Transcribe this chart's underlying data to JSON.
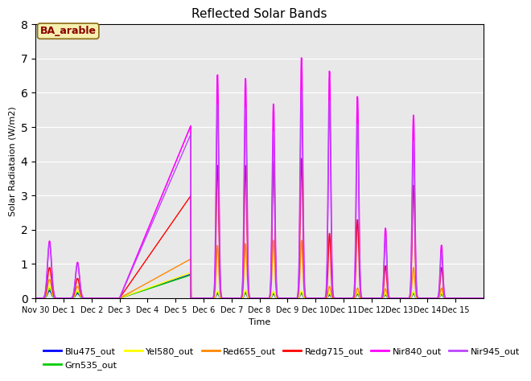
{
  "title": "Reflected Solar Bands",
  "xlabel": "Time",
  "ylabel": "Solar Radiataion (W/m2)",
  "ylim": [
    0,
    8.0
  ],
  "yticks": [
    0.0,
    1.0,
    2.0,
    3.0,
    4.0,
    5.0,
    6.0,
    7.0,
    8.0
  ],
  "xtick_labels": [
    "Nov 30",
    "Dec 1",
    "Dec 2",
    "Dec 3",
    "Dec 4",
    "Dec 5",
    "Dec 6",
    "Dec 7",
    "Dec 8",
    "Dec 9",
    "Dec 10",
    "Dec 11",
    "Dec 12",
    "Dec 13",
    "Dec 14",
    "Dec 15"
  ],
  "background_color": "#e8e8e8",
  "annotation_text": "BA_arable",
  "annotation_color": "#8B0000",
  "annotation_bg": "#f5f0b0",
  "series_order": [
    "Blu475_out",
    "Grn535_out",
    "Yel580_out",
    "Red655_out",
    "Redg715_out",
    "Nir840_out",
    "Nir945_out"
  ],
  "series": {
    "Blu475_out": {
      "color": "#0000ff",
      "lw": 1.0
    },
    "Grn535_out": {
      "color": "#00cc00",
      "lw": 1.0
    },
    "Yel580_out": {
      "color": "#ffff00",
      "lw": 1.0
    },
    "Red655_out": {
      "color": "#ff8800",
      "lw": 1.0
    },
    "Redg715_out": {
      "color": "#ff0000",
      "lw": 1.0
    },
    "Nir840_out": {
      "color": "#ff00ff",
      "lw": 1.2
    },
    "Nir945_out": {
      "color": "#bb44ff",
      "lw": 1.0
    }
  },
  "ramp_finals": {
    "Blu475_out": 0.7,
    "Grn535_out": 0.68,
    "Yel580_out": 0.75,
    "Red655_out": 1.15,
    "Redg715_out": 3.0,
    "Nir840_out": 5.05,
    "Nir945_out": 4.8
  },
  "nov30_peak": {
    "Blu475_out": 0.22,
    "Grn535_out": 0.28,
    "Yel580_out": 0.35,
    "Red655_out": 0.55,
    "Redg715_out": 0.9,
    "Nir840_out": 1.67,
    "Nir945_out": 1.6
  },
  "dec1_peak": {
    "Blu475_out": 0.14,
    "Grn535_out": 0.18,
    "Yel580_out": 0.22,
    "Red655_out": 0.35,
    "Redg715_out": 0.58,
    "Nir840_out": 1.05,
    "Nir945_out": 1.0
  },
  "daily_peaks": {
    "Blu475_out": [
      0.14,
      0.16,
      0.13,
      0.15,
      0.1,
      0.12,
      0.1,
      0.14,
      0.12
    ],
    "Grn535_out": [
      0.18,
      0.2,
      0.16,
      0.18,
      0.14,
      0.15,
      0.12,
      0.16,
      0.14
    ],
    "Yel580_out": [
      0.22,
      0.24,
      0.2,
      0.22,
      0.16,
      0.18,
      0.14,
      0.2,
      0.16
    ],
    "Red655_out": [
      1.55,
      1.6,
      1.7,
      1.7,
      0.35,
      0.3,
      0.28,
      0.9,
      0.3
    ],
    "Redg715_out": [
      3.9,
      3.9,
      4.0,
      4.1,
      1.9,
      2.3,
      0.95,
      3.3,
      0.9
    ],
    "Nir840_out": [
      6.55,
      6.45,
      5.7,
      7.05,
      6.65,
      5.9,
      2.05,
      5.35,
      1.55
    ],
    "Nir945_out": [
      5.7,
      5.6,
      4.9,
      6.1,
      5.8,
      5.1,
      1.8,
      4.6,
      1.35
    ]
  },
  "peak_days": [
    6.5,
    7.5,
    8.5,
    9.5,
    10.5,
    11.5,
    12.5,
    13.5,
    14.5
  ]
}
